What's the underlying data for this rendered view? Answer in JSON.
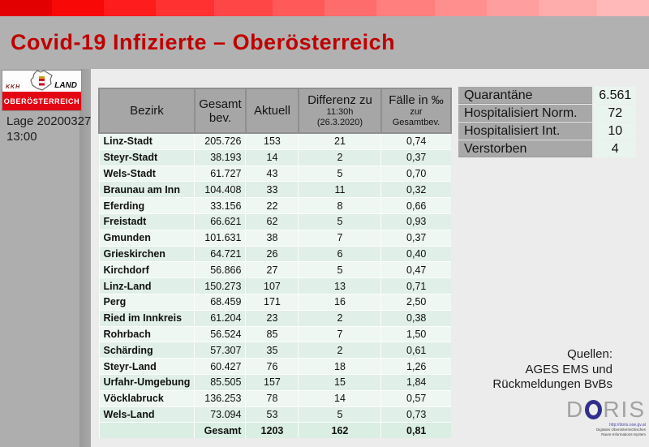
{
  "title": "Covid-19 Infizierte – Oberösterreich",
  "colors": {
    "brand_red": "#c00000",
    "topbar_left": "#e30000",
    "topbar_right": "#ffb9b9",
    "logo_red": "#e30613",
    "header_gray": "#a6a6a6",
    "row_light": "#eef7f2",
    "row_dark": "#e0efe7"
  },
  "sidebar": {
    "logo": {
      "kkh": "KKH",
      "land": "LAND",
      "region": "OBERÖSTERREICH"
    },
    "status_line1": "Lage 20200327",
    "status_line2": "13:00"
  },
  "table": {
    "columns": {
      "bezirk": "Bezirk",
      "gesamtbev_line1": "Gesamt",
      "gesamtbev_line2": "bev.",
      "aktuell": "Aktuell",
      "differenz_line1": "Differenz zu",
      "differenz_line2": "11:30h",
      "differenz_line3": "(26.3.2020)",
      "faelle_line1": "Fälle in ‰",
      "faelle_line2": "zur",
      "faelle_line3": "Gesamtbev."
    },
    "rows": [
      {
        "bezirk": "Linz-Stadt",
        "gesamtbev": "205.726",
        "aktuell": "153",
        "differenz": "21",
        "promille": "0,74"
      },
      {
        "bezirk": "Steyr-Stadt",
        "gesamtbev": "38.193",
        "aktuell": "14",
        "differenz": "2",
        "promille": "0,37"
      },
      {
        "bezirk": "Wels-Stadt",
        "gesamtbev": "61.727",
        "aktuell": "43",
        "differenz": "5",
        "promille": "0,70"
      },
      {
        "bezirk": "Braunau am Inn",
        "gesamtbev": "104.408",
        "aktuell": "33",
        "differenz": "11",
        "promille": "0,32"
      },
      {
        "bezirk": "Eferding",
        "gesamtbev": "33.156",
        "aktuell": "22",
        "differenz": "8",
        "promille": "0,66"
      },
      {
        "bezirk": "Freistadt",
        "gesamtbev": "66.621",
        "aktuell": "62",
        "differenz": "5",
        "promille": "0,93"
      },
      {
        "bezirk": "Gmunden",
        "gesamtbev": "101.631",
        "aktuell": "38",
        "differenz": "7",
        "promille": "0,37"
      },
      {
        "bezirk": "Grieskirchen",
        "gesamtbev": "64.721",
        "aktuell": "26",
        "differenz": "6",
        "promille": "0,40"
      },
      {
        "bezirk": "Kirchdorf",
        "gesamtbev": "56.866",
        "aktuell": "27",
        "differenz": "5",
        "promille": "0,47"
      },
      {
        "bezirk": "Linz-Land",
        "gesamtbev": "150.273",
        "aktuell": "107",
        "differenz": "13",
        "promille": "0,71"
      },
      {
        "bezirk": "Perg",
        "gesamtbev": "68.459",
        "aktuell": "171",
        "differenz": "16",
        "promille": "2,50"
      },
      {
        "bezirk": "Ried im Innkreis",
        "gesamtbev": "61.204",
        "aktuell": "23",
        "differenz": "2",
        "promille": "0,38"
      },
      {
        "bezirk": "Rohrbach",
        "gesamtbev": "56.524",
        "aktuell": "85",
        "differenz": "7",
        "promille": "1,50"
      },
      {
        "bezirk": "Schärding",
        "gesamtbev": "57.307",
        "aktuell": "35",
        "differenz": "2",
        "promille": "0,61"
      },
      {
        "bezirk": "Steyr-Land",
        "gesamtbev": "60.427",
        "aktuell": "76",
        "differenz": "18",
        "promille": "1,26"
      },
      {
        "bezirk": "Urfahr-Umgebung",
        "gesamtbev": "85.505",
        "aktuell": "157",
        "differenz": "15",
        "promille": "1,84"
      },
      {
        "bezirk": "Vöcklabruck",
        "gesamtbev": "136.253",
        "aktuell": "78",
        "differenz": "14",
        "promille": "0,57"
      },
      {
        "bezirk": "Wels-Land",
        "gesamtbev": "73.094",
        "aktuell": "53",
        "differenz": "5",
        "promille": "0,73"
      }
    ],
    "total": {
      "label": "Gesamt",
      "aktuell": "1203",
      "differenz": "162",
      "promille": "0,81"
    }
  },
  "stats": {
    "items": [
      {
        "label": "Quarantäne",
        "value": "6.561"
      },
      {
        "label": "Hospitalisiert Norm.",
        "value": "72"
      },
      {
        "label": "Hospitalisiert Int.",
        "value": "10"
      },
      {
        "label": "Verstorben",
        "value": "4"
      }
    ]
  },
  "sources": {
    "line1": "Quellen:",
    "line2": "AGES EMS und",
    "line3": "Rückmeldungen BvBs"
  },
  "doris": {
    "letter_d": "D",
    "letters_ris": "RIS",
    "url": "http://doris.ooe.gv.at",
    "subline1": "Digitales Oberösterreichisches",
    "subline2": "Raum-Informations-System"
  }
}
